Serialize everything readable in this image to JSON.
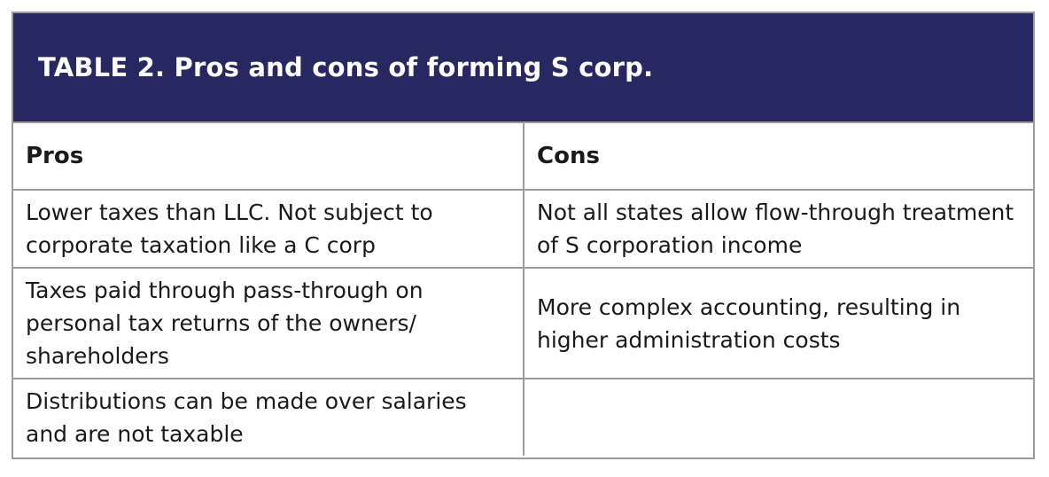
{
  "title": "TABLE 2. Pros and cons of forming S corp.",
  "colors": {
    "title_background": "#272862",
    "title_text": "#ffffff",
    "border": "#9b9b9b",
    "body_text": "#1a1a1a"
  },
  "table": {
    "headers": [
      "Pros",
      "Cons"
    ],
    "rows": [
      {
        "pro": "Lower taxes than LLC. Not subject to corporate taxation like a C corp",
        "con": "Not all states allow flow-through treatment of S corporation income"
      },
      {
        "pro": "Taxes paid through pass-through on personal tax returns of the owners/ shareholders",
        "con": "More complex accounting, resulting in higher administration costs"
      },
      {
        "pro": "Distributions can be made over salaries and are not taxable",
        "con": ""
      }
    ]
  }
}
